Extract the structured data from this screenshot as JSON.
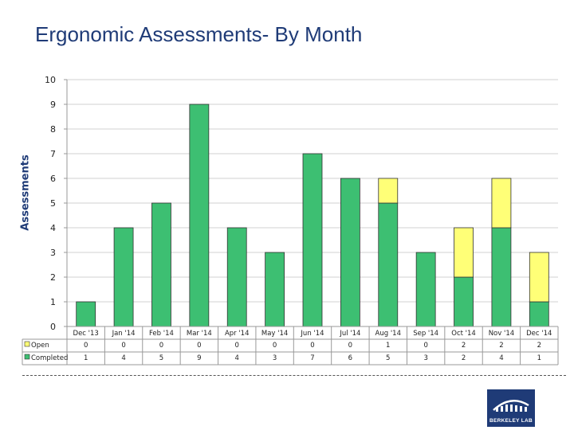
{
  "colors": {
    "completed": "#3dbf72",
    "open": "#ffff77",
    "title": "#1f3b77"
  },
  "logo": {
    "icon": "berkeley-lab-building-icon",
    "text": "BERKELEY LAB"
  },
  "chart_data": {
    "type": "bar",
    "stacked": true,
    "title": "Ergonomic Assessments- By Month",
    "xlabel": "",
    "ylabel": "Assessments",
    "ylim": [
      0,
      10
    ],
    "yticks": [
      "0",
      "1",
      "2",
      "3",
      "4",
      "5",
      "6",
      "7",
      "8",
      "9",
      "10"
    ],
    "gridlines": true,
    "legend": "data-table-left",
    "categories": [
      "Dec '13",
      "Jan '14",
      "Feb '14",
      "Mar '14",
      "Apr '14",
      "May '14",
      "Jun '14",
      "Jul '14",
      "Aug '14",
      "Sep '14",
      "Oct '14",
      "Nov '14",
      "Dec '14"
    ],
    "series": [
      {
        "name": "Completed",
        "values": [
          1,
          4,
          5,
          9,
          4,
          3,
          7,
          6,
          5,
          3,
          2,
          4,
          1
        ]
      },
      {
        "name": "Open",
        "values": [
          0,
          0,
          0,
          0,
          0,
          0,
          0,
          0,
          1,
          0,
          2,
          2,
          2
        ]
      }
    ],
    "table_rows": [
      {
        "name": "Open",
        "values": [
          "0",
          "0",
          "0",
          "0",
          "0",
          "0",
          "0",
          "0",
          "1",
          "0",
          "2",
          "2",
          "2"
        ]
      },
      {
        "name": "Completed",
        "values": [
          "1",
          "4",
          "5",
          "9",
          "4",
          "3",
          "7",
          "6",
          "5",
          "3",
          "2",
          "4",
          "1"
        ]
      }
    ]
  }
}
